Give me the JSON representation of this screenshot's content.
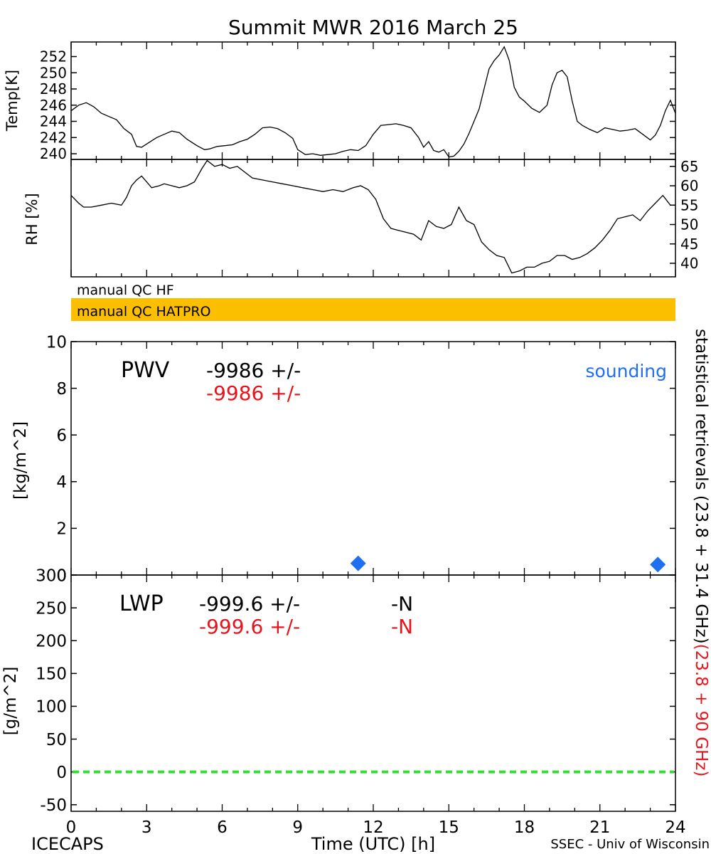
{
  "title": "Summit MWR 2016 March 25",
  "footer": {
    "left": "ICECAPS",
    "center": "Time (UTC) [h]",
    "right": "SSEC - Univ of Wisconsin"
  },
  "colors": {
    "ink": "#000000",
    "red": "#e8141c",
    "blue": "#1f6ff0",
    "qc_bar": "#fbbf00",
    "zero_line": "#33dd33"
  },
  "qc_flags": [
    {
      "label": "manual QC HF",
      "highlighted": false
    },
    {
      "label": "manual QC HATPRO",
      "highlighted": true
    }
  ],
  "right_side_label": {
    "black": "statistical retrievals (23.8 + 31.4 GHz)",
    "red": "(23.8 + 90 GHz)"
  },
  "chart_data": [
    {
      "id": "temp",
      "type": "line",
      "ylabel": "Temp[K]",
      "xlim": [
        0,
        24
      ],
      "ylim": [
        239.3,
        253.8
      ],
      "yticks": [
        "240",
        "242",
        "244",
        "246",
        "248",
        "250",
        "252"
      ],
      "series": [
        {
          "x": [
            0,
            0.3,
            0.6,
            0.9,
            1.2,
            1.5,
            1.8,
            2.1,
            2.4,
            2.6,
            2.8,
            3.1,
            3.4,
            3.7,
            4.0,
            4.3,
            4.6,
            5.0,
            5.3,
            5.5,
            5.8,
            6.1,
            6.4,
            6.7,
            7.0,
            7.3,
            7.6,
            7.9,
            8.2,
            8.5,
            8.8,
            9.0,
            9.3,
            9.6,
            9.9,
            10.2,
            10.5,
            10.8,
            11.1,
            11.4,
            11.7,
            12.0,
            12.3,
            12.6,
            12.9,
            13.2,
            13.5,
            13.8,
            14.0,
            14.2,
            14.4,
            14.6,
            14.8,
            15.0,
            15.2,
            15.4,
            15.6,
            15.8,
            16.0,
            16.2,
            16.4,
            16.6,
            16.8,
            17.0,
            17.2,
            17.4,
            17.6,
            17.8,
            18.0,
            18.3,
            18.6,
            18.9,
            19.1,
            19.3,
            19.5,
            19.7,
            19.9,
            20.1,
            20.3,
            20.6,
            20.9,
            21.2,
            21.5,
            21.8,
            22.1,
            22.4,
            22.7,
            23.0,
            23.2,
            23.4,
            23.6,
            23.8,
            24.0
          ],
          "y": [
            245.3,
            246.0,
            246.3,
            245.8,
            245.0,
            244.6,
            244.2,
            243.1,
            242.4,
            240.9,
            240.8,
            241.4,
            242.0,
            242.4,
            242.8,
            242.6,
            241.8,
            241.0,
            240.5,
            240.6,
            240.9,
            241.0,
            241.1,
            241.5,
            241.8,
            242.4,
            243.2,
            243.3,
            243.1,
            242.6,
            241.9,
            240.5,
            239.9,
            240.0,
            239.8,
            239.9,
            240.0,
            240.3,
            240.5,
            240.4,
            241.0,
            242.4,
            243.5,
            243.6,
            243.7,
            243.5,
            243.2,
            242.0,
            240.8,
            241.5,
            240.4,
            240.2,
            240.5,
            239.6,
            239.7,
            240.3,
            241.2,
            242.5,
            244.0,
            245.5,
            248.0,
            250.5,
            251.5,
            252.2,
            253.2,
            251.5,
            248.2,
            247.0,
            246.5,
            245.6,
            245.1,
            246.0,
            248.5,
            250.0,
            250.3,
            249.5,
            246.5,
            244.0,
            243.5,
            243.0,
            242.6,
            243.2,
            243.0,
            242.8,
            242.9,
            243.1,
            242.4,
            241.7,
            242.3,
            243.5,
            245.3,
            246.6,
            245.0
          ],
          "color": "#000000"
        }
      ]
    },
    {
      "id": "rh",
      "type": "line",
      "ylabel": "RH [%]",
      "xlim": [
        0,
        24
      ],
      "ylim": [
        36.5,
        66.8
      ],
      "yticks": [
        "40",
        "45",
        "50",
        "55",
        "60",
        "65"
      ],
      "series": [
        {
          "x": [
            0,
            0.3,
            0.5,
            0.8,
            1.2,
            1.6,
            2.0,
            2.2,
            2.4,
            2.6,
            2.8,
            3.0,
            3.2,
            3.5,
            3.7,
            4.0,
            4.3,
            4.6,
            4.9,
            5.2,
            5.4,
            5.7,
            6.0,
            6.3,
            6.6,
            6.9,
            7.2,
            7.6,
            8.0,
            8.4,
            8.8,
            9.2,
            9.6,
            10.0,
            10.4,
            10.8,
            11.2,
            11.5,
            11.8,
            12.1,
            12.4,
            12.7,
            13.0,
            13.3,
            13.6,
            13.9,
            14.2,
            14.5,
            14.8,
            15.1,
            15.4,
            15.7,
            16.0,
            16.3,
            16.6,
            16.9,
            17.2,
            17.5,
            17.8,
            18.1,
            18.4,
            18.7,
            19.0,
            19.3,
            19.6,
            19.9,
            20.2,
            20.5,
            20.8,
            21.1,
            21.4,
            21.7,
            22.0,
            22.3,
            22.6,
            22.9,
            23.2,
            23.5,
            23.8,
            24.0
          ],
          "y": [
            57.5,
            55.5,
            54.5,
            54.5,
            55.0,
            55.5,
            55.0,
            57.0,
            60.0,
            61.5,
            62.5,
            61.0,
            59.5,
            60.0,
            60.5,
            60.0,
            59.5,
            60.0,
            61.0,
            64.5,
            66.5,
            65.0,
            65.5,
            64.5,
            65.0,
            63.5,
            62.0,
            61.5,
            61.0,
            60.5,
            60.0,
            59.5,
            59.0,
            58.5,
            59.0,
            58.5,
            59.5,
            60.0,
            59.0,
            56.5,
            51.5,
            49.0,
            48.5,
            48.0,
            47.5,
            46.0,
            51.0,
            49.5,
            49.0,
            50.0,
            54.5,
            51.0,
            50.0,
            45.5,
            43.5,
            42.0,
            41.5,
            37.5,
            38.0,
            39.0,
            39.0,
            40.0,
            40.5,
            42.0,
            42.0,
            41.0,
            41.5,
            42.5,
            44.0,
            46.0,
            48.5,
            51.5,
            52.0,
            52.5,
            51.0,
            53.5,
            55.5,
            57.5,
            55.0,
            55.0
          ],
          "color": "#000000"
        }
      ]
    },
    {
      "id": "pwv",
      "type": "scatter",
      "ylabel": "[kg/m^2]",
      "xlim": [
        0,
        24
      ],
      "ylim": [
        0,
        10
      ],
      "yticks": [
        "0",
        "2",
        "4",
        "6",
        "8",
        "10"
      ],
      "label": "PWV",
      "value_black": "-9986 +/-",
      "value_red": "-9986 +/-",
      "legend": "sounding",
      "series": [
        {
          "name": "sounding",
          "x": [
            11.4,
            23.3
          ],
          "y": [
            0.5,
            0.45
          ],
          "color": "#1f6ff0",
          "marker": "diamond"
        }
      ]
    },
    {
      "id": "lwp",
      "type": "line",
      "ylabel": "[g/m^2]",
      "xlabel": "Time (UTC) [h]",
      "xlim": [
        0,
        24
      ],
      "ylim": [
        -60,
        300
      ],
      "yticks": [
        "-50",
        "0",
        "50",
        "100",
        "150",
        "200",
        "250",
        "300"
      ],
      "xticks": [
        "0",
        "3",
        "6",
        "9",
        "12",
        "15",
        "18",
        "21",
        "24"
      ],
      "label": "LWP",
      "value_black": "-999.6 +/-",
      "value_red": "-999.6 +/-",
      "n_black": "-N",
      "n_red": "-N",
      "reference_line": {
        "y": 0,
        "style": "dashed",
        "color": "#33dd33"
      }
    }
  ]
}
